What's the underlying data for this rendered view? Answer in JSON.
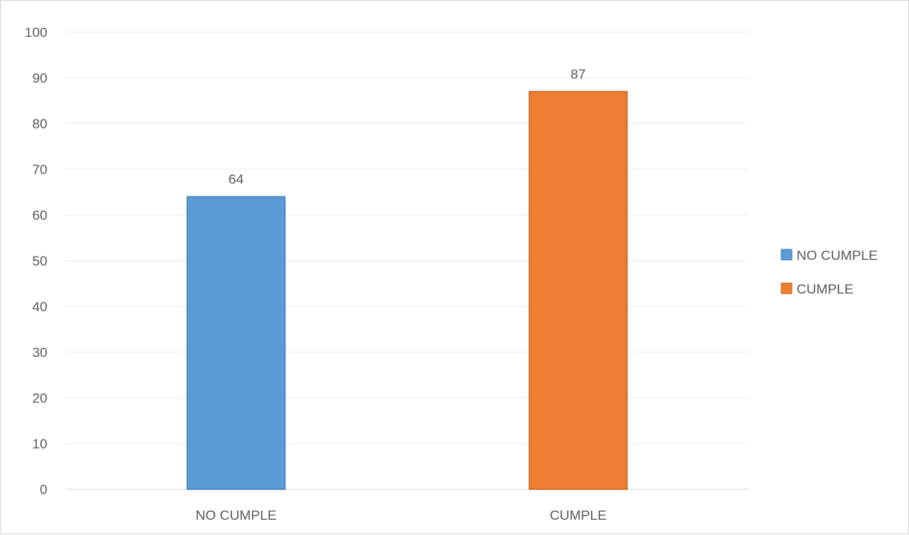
{
  "chart_data": {
    "type": "bar",
    "categories": [
      "NO CUMPLE",
      "CUMPLE"
    ],
    "series": [
      {
        "name": "NO CUMPLE",
        "category": "NO CUMPLE",
        "value": 64,
        "color": "#5b9bd5",
        "stroke": "#2e75b6"
      },
      {
        "name": "CUMPLE",
        "category": "CUMPLE",
        "value": 87,
        "color": "#ed7d31",
        "stroke": "#c55a11"
      }
    ],
    "values": [
      64,
      87
    ],
    "data_labels": [
      "64",
      "87"
    ],
    "title": "",
    "xlabel": "",
    "ylabel": "",
    "ylim": [
      0,
      100
    ],
    "yticks": [
      0,
      10,
      20,
      30,
      40,
      50,
      60,
      70,
      80,
      90,
      100
    ],
    "grid": true,
    "legend": {
      "position": "right",
      "entries": [
        "NO CUMPLE",
        "CUMPLE"
      ]
    },
    "gridline_color": "#ececec",
    "axis_color": "#d9d9d9"
  }
}
